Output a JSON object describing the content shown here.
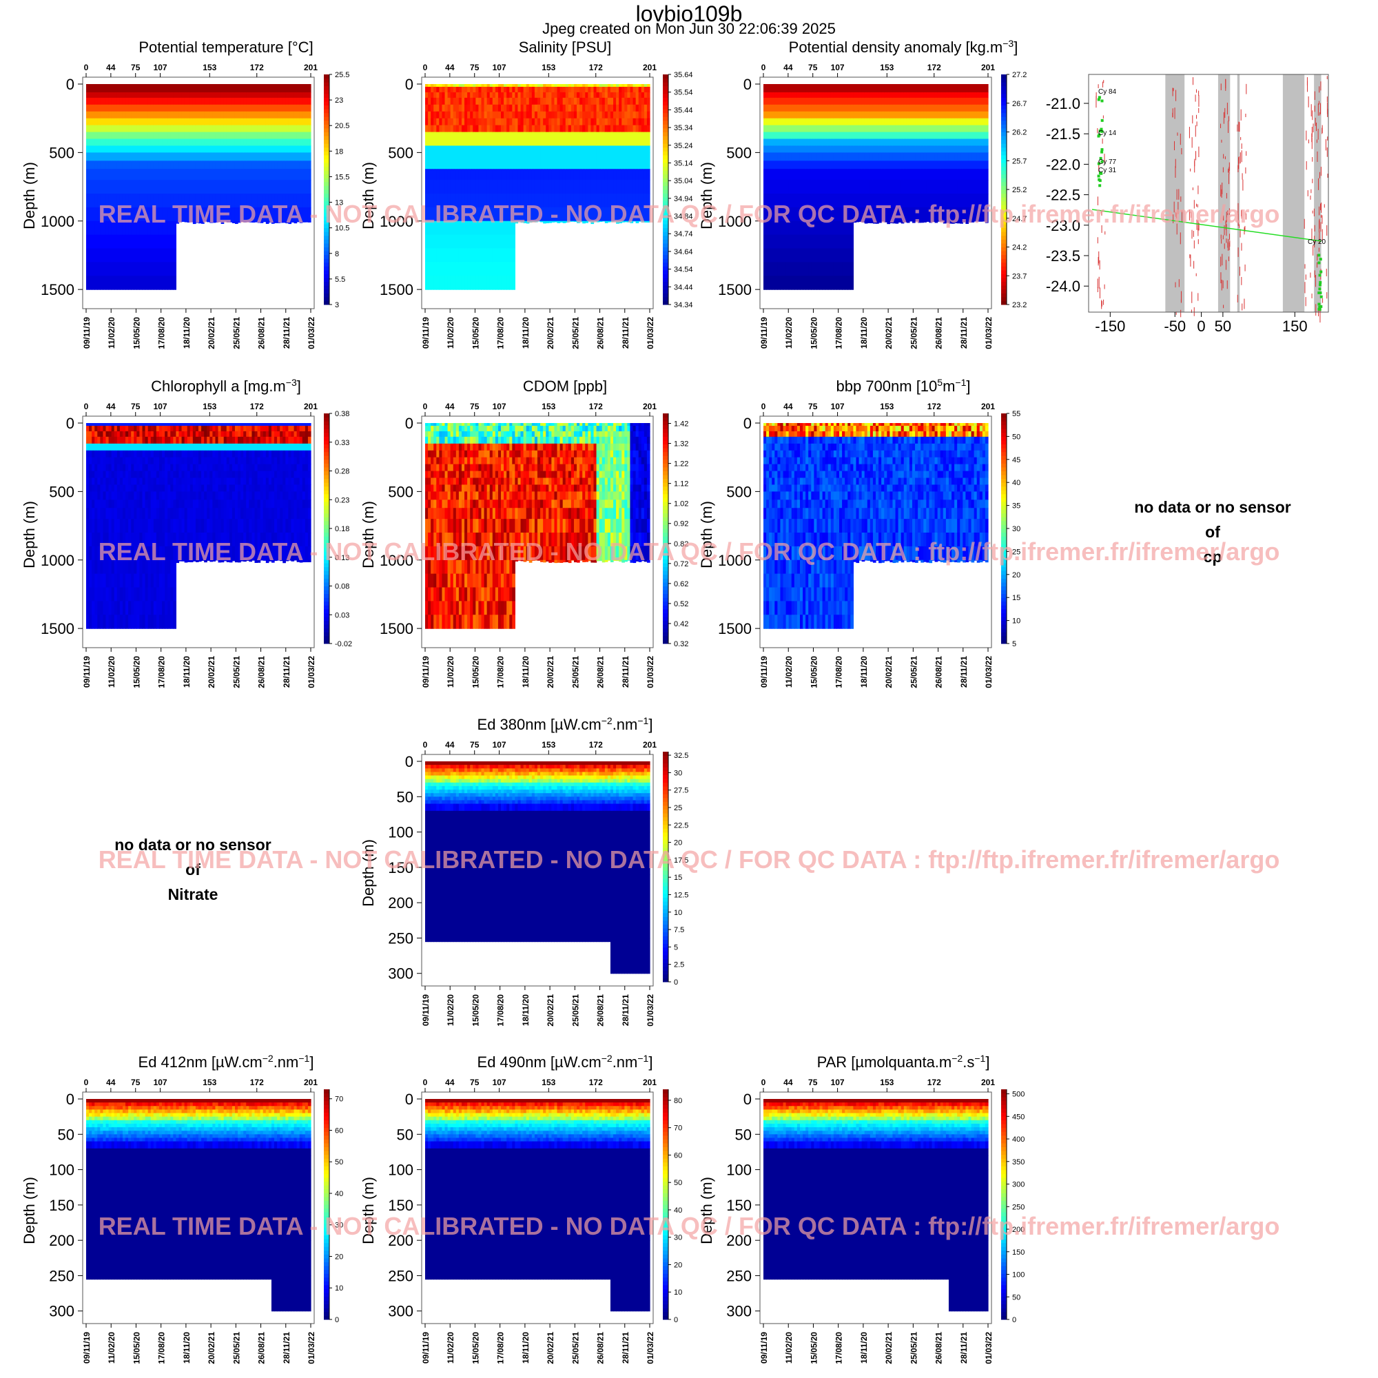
{
  "header": {
    "float_id": "lovbio109b",
    "created": "Jpeg created on  Mon Jun 30 22:06:39 2025"
  },
  "watermark": "REAL TIME DATA - NOT CALIBRATED - NO DATA QC  /  FOR QC DATA : ftp://ftp.ifremer.fr/ifremer/argo",
  "cycle_axis": {
    "ticks": [
      "0",
      "44",
      "75",
      "107",
      "153",
      "172",
      "201"
    ]
  },
  "date_axis": {
    "ticks": [
      "09/11/19",
      "11/02/20",
      "15/05/20",
      "17/08/20",
      "18/11/20",
      "20/02/21",
      "25/05/21",
      "26/08/21",
      "28/11/21",
      "01/03/22"
    ]
  },
  "ylabel": "Depth (m)",
  "chart_data": [
    {
      "type": "heatmap",
      "title_html": "Potential temperature [°C]",
      "title": "Potential temperature [°C]",
      "ylabel": "Depth (m)",
      "yticks": [
        "0",
        "500",
        "1000",
        "1500"
      ],
      "ylim": [
        0,
        1600
      ],
      "colorbar": [
        "3",
        "5.5",
        "8",
        "10.5",
        "13",
        "15.5",
        "18",
        "20.5",
        "23",
        "25.5"
      ],
      "clim": [
        3,
        25.5
      ],
      "profile": "temp"
    },
    {
      "type": "heatmap",
      "title": "Salinity [PSU]",
      "ylabel": "Depth (m)",
      "yticks": [
        "0",
        "500",
        "1000",
        "1500"
      ],
      "ylim": [
        0,
        1600
      ],
      "colorbar": [
        "34.34",
        "34.44",
        "34.54",
        "34.64",
        "34.74",
        "34.84",
        "34.94",
        "35.04",
        "35.14",
        "35.24",
        "35.34",
        "35.44",
        "35.54",
        "35.64"
      ],
      "clim": [
        34.34,
        35.64
      ],
      "profile": "sal"
    },
    {
      "type": "heatmap",
      "title": "Potential density anomaly [kg.m",
      "title_sup": "−3",
      "title_end": "]",
      "ylabel": "Depth (m)",
      "yticks": [
        "0",
        "500",
        "1000",
        "1500"
      ],
      "ylim": [
        0,
        1600
      ],
      "colorbar": [
        "23.2",
        "23.7",
        "24.2",
        "24.7",
        "25.2",
        "25.7",
        "26.2",
        "26.7",
        "27.2"
      ],
      "clim": [
        23.2,
        27.2
      ],
      "reverse": true,
      "profile": "dens"
    },
    {
      "type": "heatmap",
      "title": "Chlorophyll a [mg.m",
      "title_sup": "−3",
      "title_end": "]",
      "ylabel": "Depth (m)",
      "yticks": [
        "0",
        "500",
        "1000",
        "1500"
      ],
      "ylim": [
        0,
        1600
      ],
      "colorbar": [
        "-0.02",
        "0.03",
        "0.08",
        "0.13",
        "0.18",
        "0.23",
        "0.28",
        "0.33",
        "0.38"
      ],
      "clim": [
        -0.02,
        0.38
      ],
      "profile": "chl"
    },
    {
      "type": "heatmap",
      "title": "CDOM  [ppb]",
      "ylabel": "Depth (m)",
      "yticks": [
        "0",
        "500",
        "1000",
        "1500"
      ],
      "ylim": [
        0,
        1600
      ],
      "colorbar": [
        "0.32",
        "0.42",
        "0.52",
        "0.62",
        "0.72",
        "0.82",
        "0.92",
        "1.02",
        "1.12",
        "1.22",
        "1.32",
        "1.42"
      ],
      "clim": [
        0.32,
        1.47
      ],
      "profile": "cdom"
    },
    {
      "type": "heatmap",
      "title": "bbp 700nm [10",
      "title_sup": "5",
      "title_mid": "m",
      "title_sup2": "−1",
      "title_end": "]",
      "ylabel": "Depth (m)",
      "yticks": [
        "0",
        "500",
        "1000",
        "1500"
      ],
      "ylim": [
        0,
        1600
      ],
      "colorbar": [
        "5",
        "10",
        "15",
        "20",
        "25",
        "30",
        "35",
        "40",
        "45",
        "50",
        "55"
      ],
      "clim": [
        5,
        55
      ],
      "profile": "bbp"
    },
    {
      "type": "heatmap",
      "title": "Ed 380nm [µW.cm",
      "title_sup": "−2",
      "title_mid": ".nm",
      "title_sup2": "−1",
      "title_end": "]",
      "ylabel": "Depth (m)",
      "yticks": [
        "0",
        "50",
        "100",
        "150",
        "200",
        "250",
        "300"
      ],
      "ylim": [
        0,
        310
      ],
      "colorbar": [
        "0",
        "2.5",
        "5",
        "7.5",
        "10",
        "12.5",
        "15",
        "17.5",
        "20",
        "22.5",
        "25",
        "27.5",
        "30",
        "32.5"
      ],
      "clim": [
        0,
        33
      ],
      "profile": "light"
    },
    {
      "type": "heatmap",
      "title": "Ed 412nm [µW.cm",
      "title_sup": "−2",
      "title_mid": ".nm",
      "title_sup2": "−1",
      "title_end": "]",
      "ylabel": "Depth (m)",
      "yticks": [
        "0",
        "50",
        "100",
        "150",
        "200",
        "250",
        "300"
      ],
      "ylim": [
        0,
        310
      ],
      "colorbar": [
        "0",
        "10",
        "20",
        "30",
        "40",
        "50",
        "60",
        "70"
      ],
      "clim": [
        0,
        73
      ],
      "profile": "light"
    },
    {
      "type": "heatmap",
      "title": "Ed 490nm [µW.cm",
      "title_sup": "−2",
      "title_mid": ".nm",
      "title_sup2": "−1",
      "title_end": "]",
      "ylabel": "Depth (m)",
      "yticks": [
        "0",
        "50",
        "100",
        "150",
        "200",
        "250",
        "300"
      ],
      "ylim": [
        0,
        310
      ],
      "colorbar": [
        "0",
        "10",
        "20",
        "30",
        "40",
        "50",
        "60",
        "70",
        "80"
      ],
      "clim": [
        0,
        84
      ],
      "profile": "light"
    },
    {
      "type": "heatmap",
      "title": "PAR [µmolquanta.m",
      "title_sup": "−2",
      "title_mid": ".s",
      "title_sup2": "−1",
      "title_end": "]",
      "ylabel": "Depth (m)",
      "yticks": [
        "0",
        "50",
        "100",
        "150",
        "200",
        "250",
        "300"
      ],
      "ylim": [
        0,
        310
      ],
      "colorbar": [
        "0",
        "50",
        "100",
        "150",
        "200",
        "250",
        "300",
        "350",
        "400",
        "450",
        "500"
      ],
      "clim": [
        0,
        510
      ],
      "profile": "light"
    }
  ],
  "map": {
    "type": "scatter",
    "xticks": [
      "-150",
      "-50",
      "0",
      "50",
      "150"
    ],
    "yticks": [
      "-21.0",
      "-21.5",
      "-22.0",
      "-22.5",
      "-23.0",
      "-23.5",
      "-24.0"
    ],
    "labels": [
      "Cy 84",
      "Cy 14",
      "Cy 77",
      "Cy 31",
      "Cy 20"
    ],
    "track_color": "#22cc22",
    "line_color": "#22dd22"
  },
  "nodata_cp": [
    "no data or no sensor",
    "of",
    "cp"
  ],
  "nodata_nitrate": [
    "no data or no sensor",
    "of",
    "Nitrate"
  ]
}
